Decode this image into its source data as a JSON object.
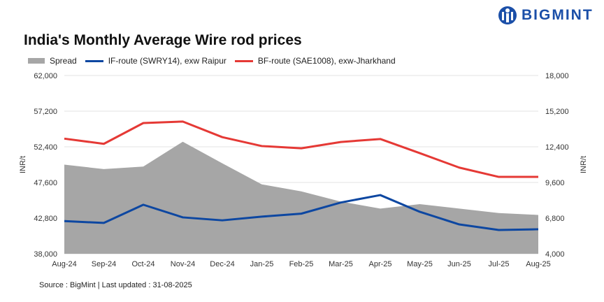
{
  "title": "India's Monthly Average Wire rod prices",
  "brand": "BIGMINT",
  "source": "Source : BigMint | Last updated : 31-08-2025",
  "colors": {
    "spread": "#a6a6a6",
    "if_route": "#0d47a1",
    "bf_route": "#e53935",
    "brand": "#1b4fa8"
  },
  "chart_data": {
    "type": "line",
    "title": "India's Monthly Average Wire rod prices",
    "categories": [
      "Aug-24",
      "Sep-24",
      "Oct-24",
      "Nov-24",
      "Dec-24",
      "Jan-25",
      "Feb-25",
      "Mar-25",
      "Apr-25",
      "May-25",
      "Jun-25",
      "Jul-25",
      "Aug-25"
    ],
    "ylabel": "INR/t",
    "y2label": "INR/t",
    "ylim": [
      38000,
      62000
    ],
    "y2lim": [
      4000,
      18000
    ],
    "yticks": [
      "38,000",
      "42,800",
      "47,600",
      "52,400",
      "57,200",
      "62,000"
    ],
    "y2ticks": [
      "4,000",
      "6,800",
      "9,600",
      "12,400",
      "15,200",
      "18,000"
    ],
    "grid": true,
    "legend": "top-left",
    "series": [
      {
        "name": "Spread",
        "type": "area",
        "axis": "right",
        "values": [
          11000,
          10650,
          10850,
          12800,
          11100,
          9450,
          8900,
          8100,
          7550,
          7900,
          7550,
          7200,
          7050
        ]
      },
      {
        "name": "IF-route (SWRY14), exw Raipur",
        "type": "line",
        "axis": "left",
        "values": [
          42400,
          42150,
          44600,
          42900,
          42500,
          43000,
          43400,
          44900,
          45900,
          43650,
          41950,
          41200,
          41300
        ]
      },
      {
        "name": "BF-route (SAE1008), exw-Jharkhand",
        "type": "line",
        "axis": "left",
        "values": [
          53500,
          52800,
          55600,
          55800,
          53700,
          52500,
          52200,
          53050,
          53450,
          51550,
          49600,
          48350,
          48350
        ]
      }
    ]
  }
}
